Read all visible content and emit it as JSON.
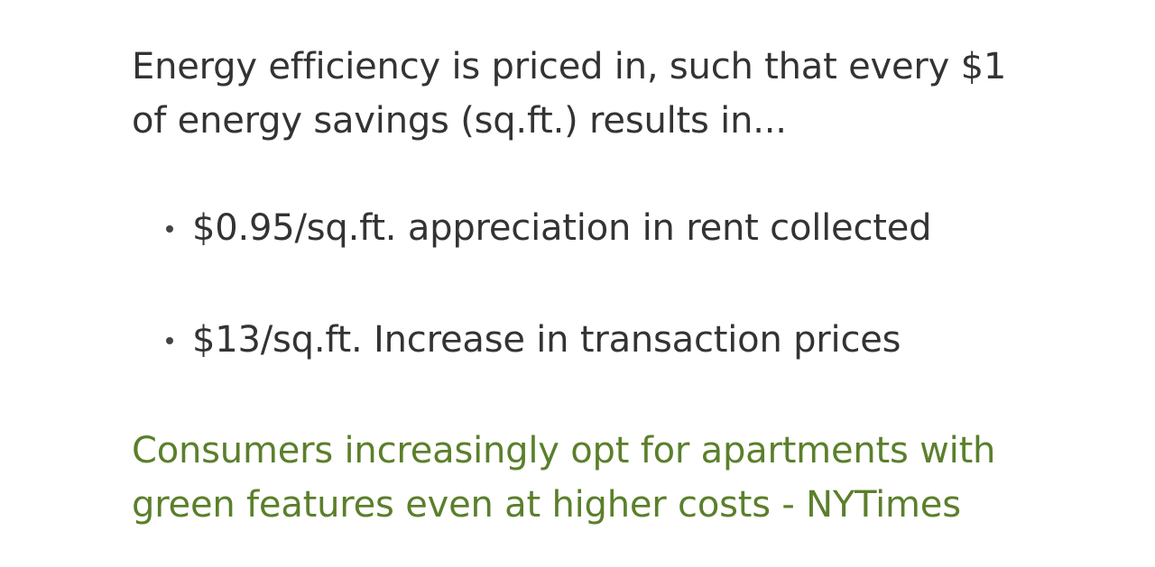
{
  "slide": {
    "intro_line_1": "Energy efficiency is priced in, such that every $1",
    "intro_line_2": "of energy savings (sq.ft.) results in...",
    "bullets": [
      {
        "text": "$0.95/sq.ft. appreciation in rent collected"
      },
      {
        "text": "$13/sq.ft. Increase in transaction prices"
      }
    ],
    "quote_line_1": "Consumers increasingly opt for apartments with",
    "quote_line_2": "green features even at higher costs - NYTimes",
    "colors": {
      "body_text": "#333333",
      "quote_text": "#5b7f2b",
      "background": "#ffffff"
    }
  }
}
